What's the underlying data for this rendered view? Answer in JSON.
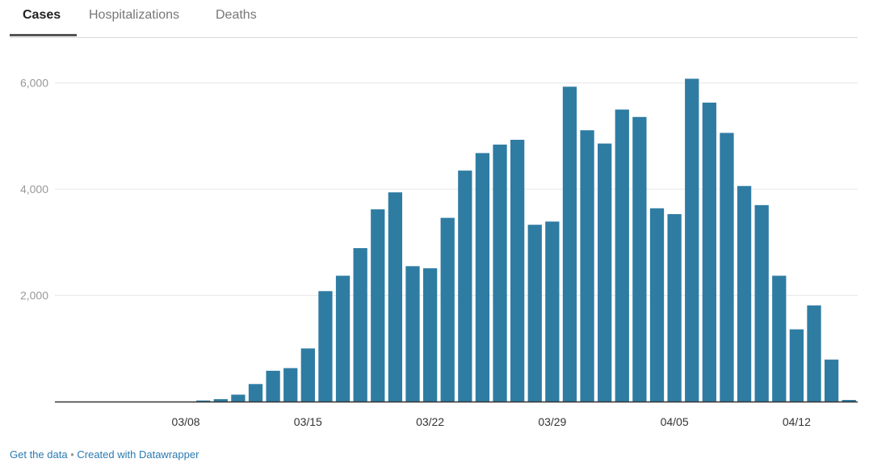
{
  "tabs": [
    {
      "label": "Cases",
      "active": true
    },
    {
      "label": "Hospitalizations",
      "active": false
    },
    {
      "label": "Deaths",
      "active": false
    }
  ],
  "chart_data": {
    "type": "bar",
    "title": "",
    "xlabel": "",
    "ylabel": "",
    "ylim": [
      0,
      6300
    ],
    "yticks": [
      {
        "value": 2000,
        "label": "2,000"
      },
      {
        "value": 4000,
        "label": "4,000"
      },
      {
        "value": 6000,
        "label": "6,000"
      }
    ],
    "xticks": [
      {
        "index": 7,
        "label": "03/08"
      },
      {
        "index": 14,
        "label": "03/15"
      },
      {
        "index": 21,
        "label": "03/22"
      },
      {
        "index": 28,
        "label": "03/29"
      },
      {
        "index": 35,
        "label": "04/05"
      },
      {
        "index": 42,
        "label": "04/12"
      }
    ],
    "grid": true,
    "color": "#2f7ca3",
    "values": [
      0,
      0,
      0,
      0,
      0,
      0,
      0,
      0,
      20,
      45,
      130,
      330,
      580,
      630,
      1000,
      2080,
      2370,
      2890,
      3620,
      3940,
      2550,
      2510,
      3460,
      4350,
      4680,
      4840,
      4930,
      3330,
      3390,
      5930,
      5110,
      4860,
      5500,
      5360,
      3640,
      3530,
      6080,
      5630,
      5060,
      4060,
      3700,
      2370,
      1360,
      1810,
      790,
      30
    ]
  },
  "footer": {
    "get_data": "Get the data",
    "separator": "•",
    "created_with": "Created with Datawrapper"
  }
}
